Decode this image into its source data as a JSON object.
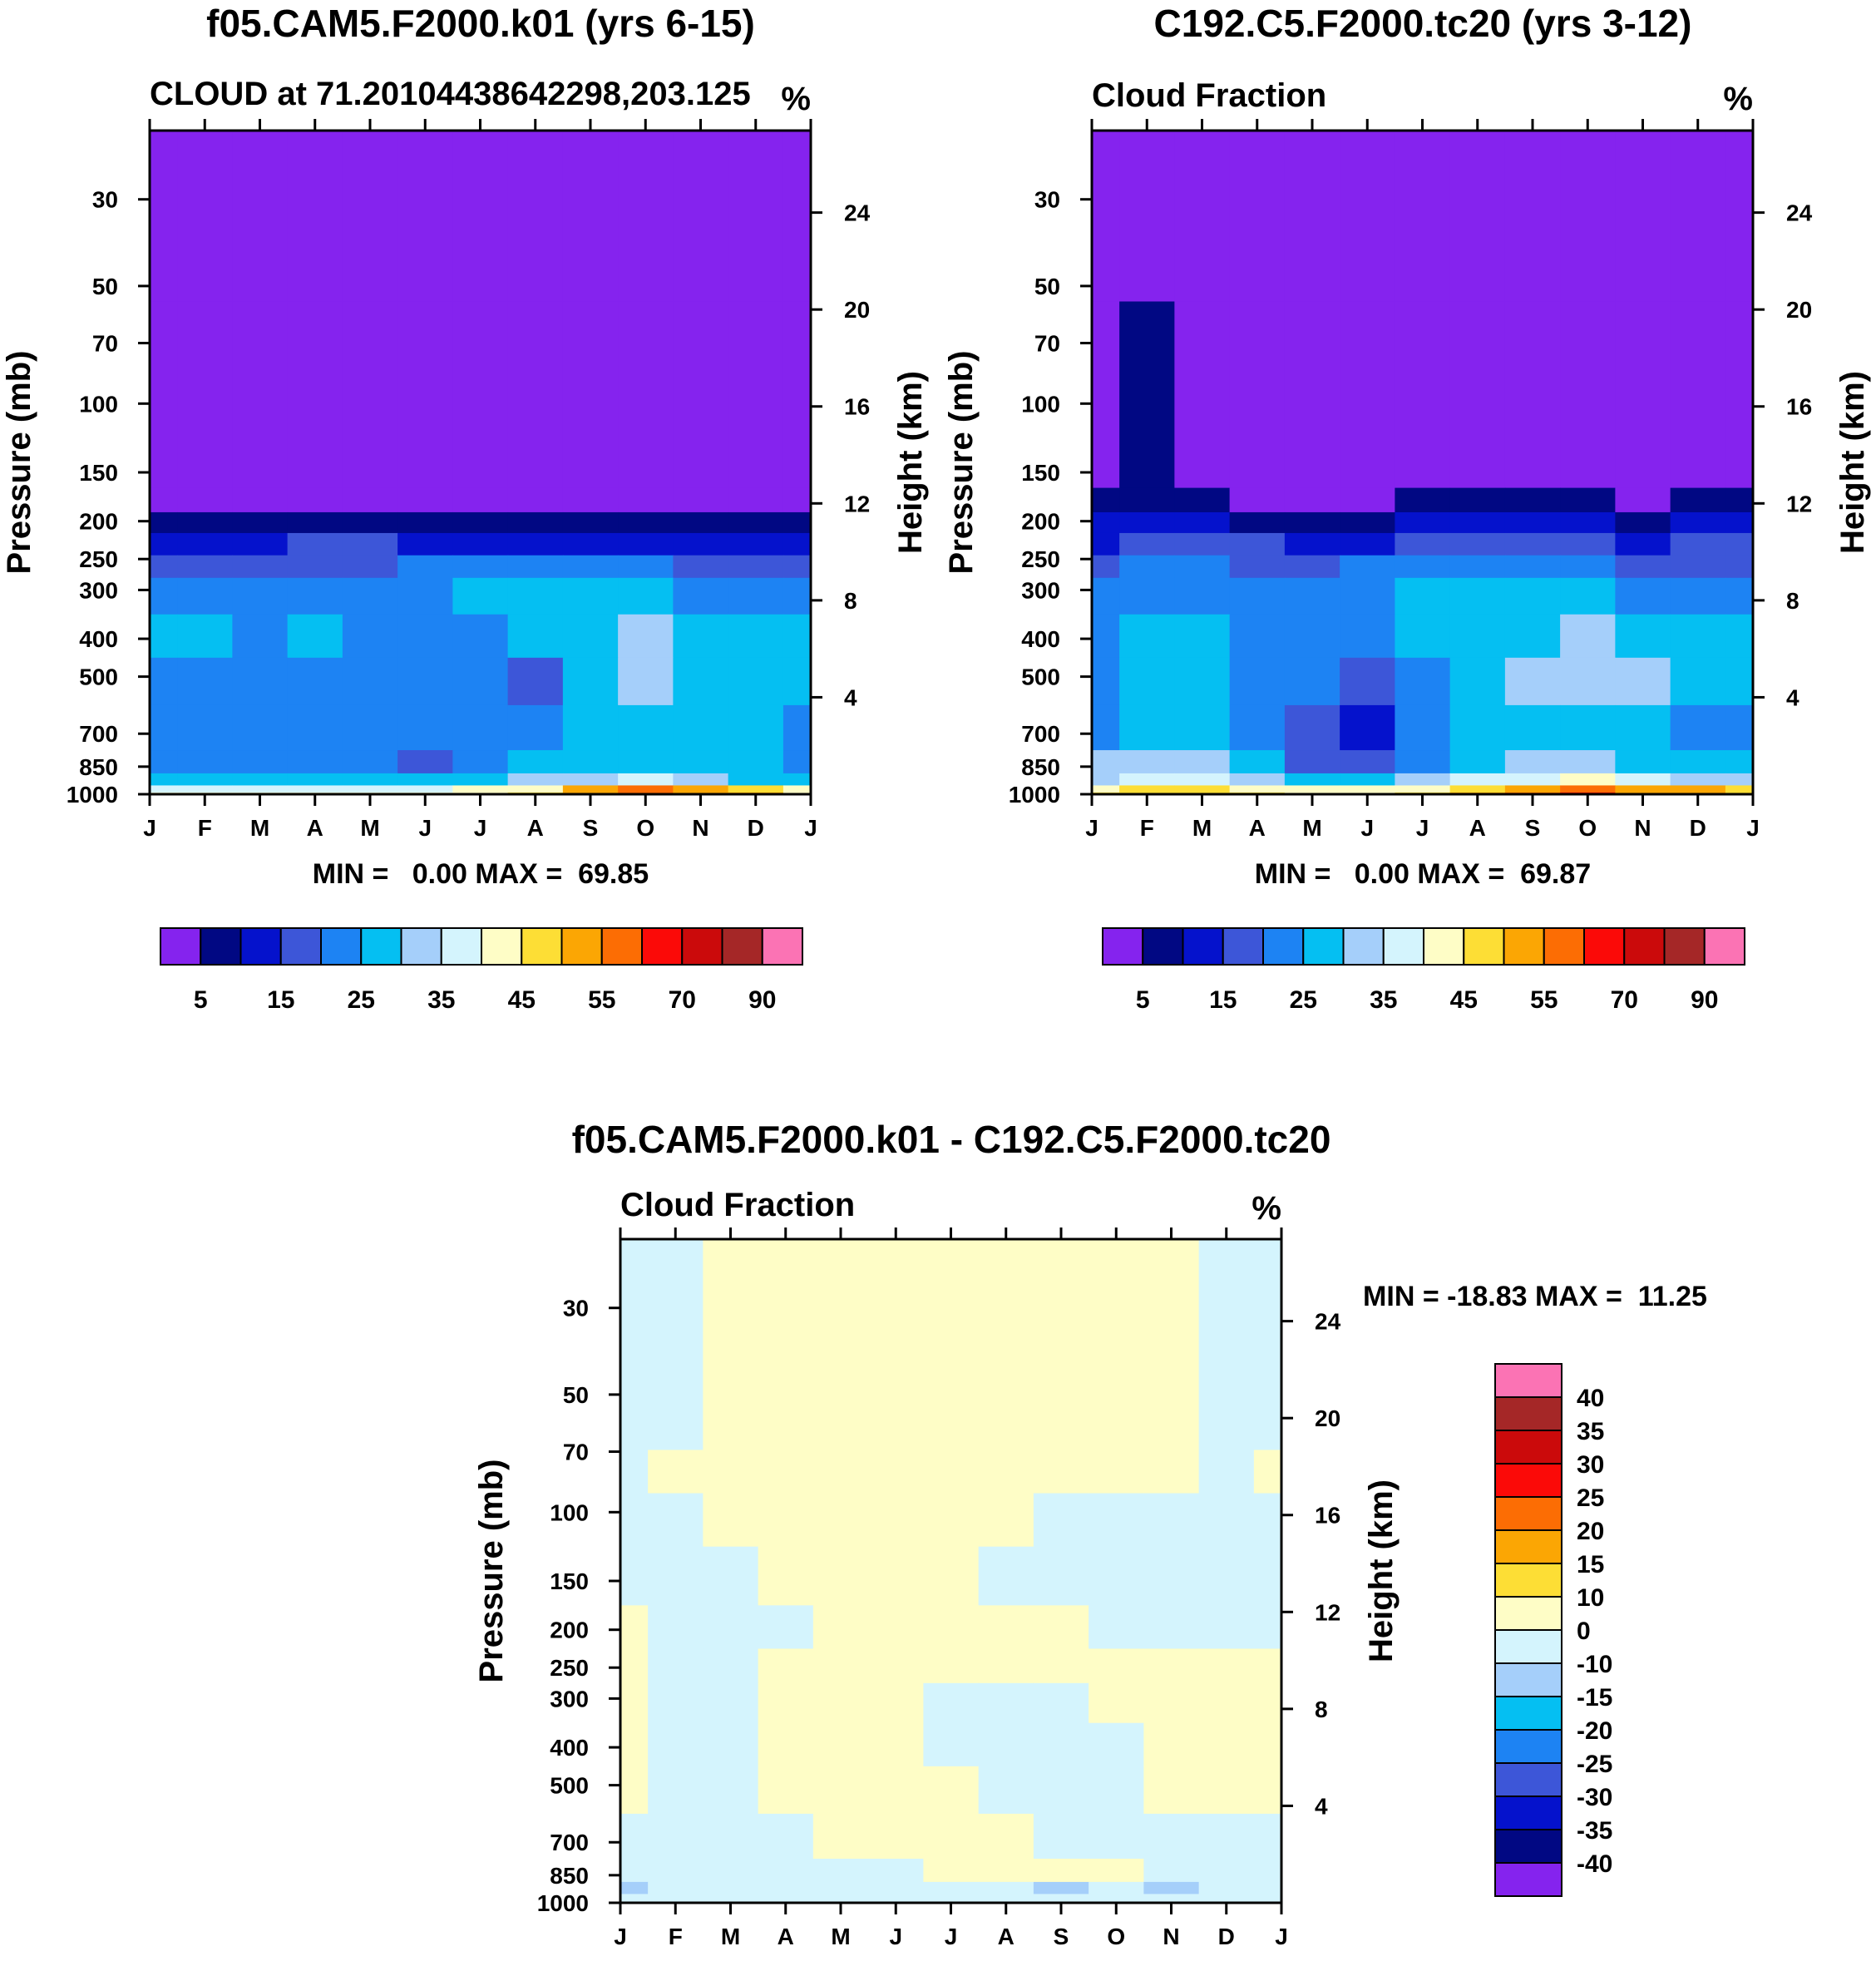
{
  "chart_data": [
    {
      "type": "heatmap",
      "panel": "model-a",
      "title": "f05.CAM5.F2000.k01 (yrs 6-15)",
      "subtitle_left": "CLOUD at 71.20104438642298,203.125",
      "subtitle_right": "%",
      "xlabel": "",
      "ylabel": "Pressure (mb)",
      "ylabel_right": "Height (km)",
      "months": [
        "J",
        "F",
        "M",
        "A",
        "M",
        "J",
        "J",
        "A",
        "S",
        "O",
        "N",
        "D",
        "J"
      ],
      "pressure_ticks": [
        30,
        50,
        70,
        100,
        150,
        200,
        250,
        300,
        400,
        500,
        700,
        850,
        1000
      ],
      "height_ticks": [
        24,
        20,
        16,
        12,
        8,
        4
      ],
      "yrange_mb": [
        20,
        1000
      ],
      "stats": "MIN =   0.00 MAX =  69.85",
      "min": 0.0,
      "max": 69.85,
      "levels_mb": [
        20,
        150,
        180,
        200,
        230,
        260,
        300,
        400,
        500,
        700,
        850,
        920,
        980,
        1000
      ],
      "values": [
        [
          0,
          0,
          0,
          0,
          0,
          0,
          0,
          0,
          0,
          0,
          0,
          0,
          0
        ],
        [
          0,
          0,
          0,
          0,
          0,
          0,
          0,
          0,
          0,
          0,
          0,
          0,
          0
        ],
        [
          3,
          3,
          3,
          1,
          2,
          3,
          3,
          3,
          3,
          3,
          2,
          3,
          3
        ],
        [
          8,
          8,
          8,
          6,
          7,
          8,
          8,
          8,
          8,
          8,
          7,
          8,
          8
        ],
        [
          14,
          13,
          14,
          17,
          15,
          13,
          13,
          13,
          13,
          13,
          14,
          13,
          14
        ],
        [
          18,
          18,
          18,
          19,
          19,
          20,
          20,
          20,
          20,
          20,
          19,
          19,
          19
        ],
        [
          22,
          22,
          22,
          22,
          22,
          22,
          28,
          28,
          28,
          28,
          22,
          22,
          22
        ],
        [
          27,
          26,
          22,
          27,
          22,
          21,
          24,
          28,
          28,
          33,
          28,
          28,
          28
        ],
        [
          24,
          24,
          24,
          24,
          22,
          21,
          24,
          19,
          26,
          33,
          28,
          28,
          27
        ],
        [
          23,
          22,
          22,
          22,
          21,
          20,
          22,
          24,
          26,
          26,
          25,
          25,
          24
        ],
        [
          23,
          23,
          23,
          23,
          21,
          17,
          23,
          25,
          28,
          28,
          27,
          26,
          23
        ],
        [
          26,
          26,
          26,
          26,
          26,
          26,
          28,
          30,
          34,
          36,
          30,
          28,
          26
        ],
        [
          38,
          38,
          38,
          38,
          38,
          38,
          40,
          44,
          52,
          56,
          50,
          48,
          42
        ],
        [
          40,
          40,
          40,
          40,
          40,
          40,
          42,
          46,
          54,
          58,
          52,
          50,
          44
        ]
      ]
    },
    {
      "type": "heatmap",
      "panel": "model-b",
      "title": "C192.C5.F2000.tc20 (yrs 3-12)",
      "subtitle_left": "Cloud Fraction",
      "subtitle_right": "%",
      "xlabel": "",
      "ylabel": "Pressure (mb)",
      "ylabel_right": "Height (km)",
      "months": [
        "J",
        "F",
        "M",
        "A",
        "M",
        "J",
        "J",
        "A",
        "S",
        "O",
        "N",
        "D",
        "J"
      ],
      "pressure_ticks": [
        30,
        50,
        70,
        100,
        150,
        200,
        250,
        300,
        400,
        500,
        700,
        850,
        1000
      ],
      "height_ticks": [
        24,
        20,
        16,
        12,
        8,
        4
      ],
      "yrange_mb": [
        20,
        1000
      ],
      "stats": "MIN =   0.00 MAX =  69.87",
      "min": 0.0,
      "max": 69.87,
      "levels_mb": [
        20,
        150,
        180,
        200,
        230,
        260,
        300,
        400,
        500,
        700,
        850,
        920,
        980,
        1000
      ],
      "values": [
        [
          0,
          0,
          0,
          0,
          0,
          0,
          0,
          0,
          0,
          0,
          0,
          0,
          0
        ],
        [
          0,
          5,
          3,
          0,
          0,
          0,
          0,
          0,
          0,
          0,
          0,
          0,
          0
        ],
        [
          6,
          9,
          7,
          3,
          2,
          3,
          5,
          5,
          5,
          5,
          3,
          6,
          6
        ],
        [
          10,
          13,
          12,
          8,
          8,
          9,
          10,
          10,
          10,
          10,
          8,
          11,
          11
        ],
        [
          14,
          16,
          15,
          15,
          14,
          14,
          15,
          15,
          15,
          15,
          14,
          16,
          16
        ],
        [
          18,
          20,
          20,
          19,
          19,
          20,
          20,
          20,
          20,
          20,
          19,
          19,
          19
        ],
        [
          22,
          24,
          24,
          24,
          24,
          24,
          27,
          27,
          27,
          27,
          24,
          24,
          24
        ],
        [
          24,
          26,
          26,
          22,
          22,
          21,
          28,
          28,
          28,
          33,
          28,
          26,
          26
        ],
        [
          24,
          27,
          26,
          24,
          21,
          18,
          24,
          26,
          30,
          33,
          30,
          26,
          26
        ],
        [
          24,
          27,
          26,
          22,
          17,
          14,
          21,
          25,
          28,
          28,
          26,
          24,
          24
        ],
        [
          30,
          32,
          32,
          26,
          18,
          18,
          24,
          28,
          30,
          30,
          28,
          26,
          26
        ],
        [
          34,
          35,
          36,
          32,
          26,
          27,
          33,
          35,
          38,
          40,
          36,
          34,
          34
        ],
        [
          44,
          46,
          46,
          43,
          42,
          42,
          44,
          48,
          54,
          58,
          52,
          50,
          46
        ],
        [
          46,
          48,
          48,
          45,
          44,
          44,
          46,
          50,
          56,
          60,
          54,
          52,
          48
        ]
      ]
    },
    {
      "type": "heatmap",
      "panel": "difference",
      "title": "f05.CAM5.F2000.k01 - C192.C5.F2000.tc20",
      "subtitle_left": "Cloud Fraction",
      "subtitle_right": "%",
      "xlabel": "",
      "ylabel": "Pressure (mb)",
      "ylabel_right": "Height (km)",
      "months": [
        "J",
        "F",
        "M",
        "A",
        "M",
        "J",
        "J",
        "A",
        "S",
        "O",
        "N",
        "D",
        "J"
      ],
      "pressure_ticks": [
        30,
        50,
        70,
        100,
        150,
        200,
        250,
        300,
        400,
        500,
        700,
        850,
        1000
      ],
      "height_ticks": [
        24,
        20,
        16,
        12,
        8,
        4
      ],
      "yrange_mb": [
        20,
        1000
      ],
      "stats": "MIN = -18.83 MAX =  11.25",
      "min": -18.83,
      "max": 11.25,
      "levels_mb": [
        20,
        60,
        80,
        100,
        150,
        200,
        250,
        300,
        400,
        500,
        700,
        850,
        920,
        980,
        1000
      ],
      "values": [
        [
          -2,
          -2,
          2,
          2,
          2,
          2,
          2,
          2,
          2,
          2,
          2,
          -2,
          -2
        ],
        [
          -2,
          -2,
          2,
          2,
          2,
          2,
          2,
          2,
          2,
          2,
          2,
          -2,
          -2
        ],
        [
          -2,
          2,
          2,
          2,
          2,
          2,
          2,
          2,
          2,
          2,
          2,
          -2,
          2
        ],
        [
          -2,
          -2,
          2,
          2,
          2,
          2,
          2,
          2,
          -2,
          -2,
          -2,
          -2,
          -2
        ],
        [
          -2,
          -2,
          -2,
          2,
          2,
          2,
          2,
          -2,
          -2,
          -2,
          -2,
          -2,
          -2
        ],
        [
          2,
          -2,
          -2,
          -2,
          2,
          2,
          2,
          2,
          2,
          -2,
          -2,
          -2,
          -2
        ],
        [
          2,
          -2,
          -2,
          2,
          2,
          2,
          2,
          2,
          2,
          2,
          2,
          2,
          2
        ],
        [
          2,
          -2,
          -2,
          2,
          2,
          2,
          -2,
          -2,
          -2,
          2,
          2,
          2,
          2
        ],
        [
          2,
          -2,
          -2,
          2,
          2,
          2,
          -2,
          -2,
          -2,
          -2,
          2,
          2,
          2
        ],
        [
          2,
          -2,
          -2,
          2,
          2,
          2,
          2,
          -2,
          -2,
          -2,
          2,
          2,
          2
        ],
        [
          -2,
          -2,
          -2,
          -2,
          2,
          2,
          2,
          2,
          -2,
          -2,
          -2,
          -2,
          -2
        ],
        [
          -2,
          -2,
          -2,
          -2,
          -2,
          -2,
          2,
          2,
          2,
          2,
          -2,
          -2,
          -2
        ],
        [
          -12,
          -6,
          -4,
          -2,
          -2,
          -2,
          -2,
          -4,
          -12,
          -10,
          -12,
          -4,
          -2
        ],
        [
          -2,
          -2,
          -2,
          -2,
          -2,
          -2,
          -2,
          -2,
          -4,
          -4,
          -4,
          -2,
          -2
        ],
        [
          -2,
          -2,
          -2,
          -2,
          -2,
          -2,
          -2,
          -2,
          -2,
          -2,
          -2,
          -2,
          -2
        ]
      ]
    }
  ],
  "colorbars": {
    "cloud": {
      "thresholds": [
        5,
        10,
        15,
        20,
        25,
        30,
        35,
        40,
        45,
        50,
        55,
        60,
        70,
        80,
        90
      ],
      "labels": [
        "5",
        "15",
        "25",
        "35",
        "45",
        "55",
        "70",
        "90"
      ],
      "colors": [
        "#8523ee",
        "#010883",
        "#0512cc",
        "#3d56d8",
        "#1d83f3",
        "#05bff2",
        "#a5cffa",
        "#d4f4fd",
        "#fefdc6",
        "#fdde35",
        "#fba604",
        "#fc6d04",
        "#fb0a08",
        "#cb0a0b",
        "#a52727",
        "#fb73b4"
      ]
    },
    "difference": {
      "thresholds": [
        -40,
        -35,
        -30,
        -25,
        -20,
        -15,
        -10,
        0,
        10,
        15,
        20,
        25,
        30,
        35,
        40
      ],
      "labels": [
        "40",
        "35",
        "30",
        "25",
        "20",
        "15",
        "10",
        "0",
        "-10",
        "-15",
        "-20",
        "-25",
        "-30",
        "-35",
        "-40"
      ],
      "colors": [
        "#8523ee",
        "#010883",
        "#0512cc",
        "#3d56d8",
        "#1d83f3",
        "#05bff2",
        "#a5cffa",
        "#d4f4fd",
        "#fefdc6",
        "#fdde35",
        "#fba604",
        "#fc6d04",
        "#fb0a08",
        "#cb0a0b",
        "#a52727",
        "#fb73b4"
      ]
    }
  }
}
